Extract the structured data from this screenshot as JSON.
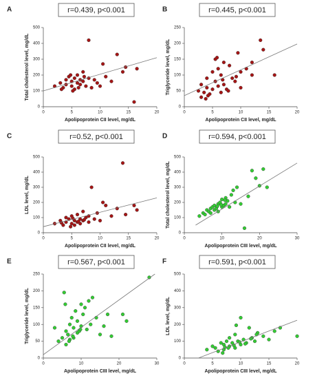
{
  "chart_data": [
    {
      "type": "scatter",
      "panel": "A",
      "annotation": "r=0.439, p<0.001",
      "x_label": "Apolipoprotein CII level, mg/dL",
      "y_label": "Total cholesterol level, mg/dL",
      "xlim": [
        0,
        20
      ],
      "xticks": [
        0,
        5,
        10,
        15,
        20
      ],
      "ylim": [
        0,
        500
      ],
      "yticks": [
        0,
        100,
        200,
        300,
        400,
        500
      ],
      "color": "#a51515",
      "x": [
        2,
        3,
        3.5,
        4,
        4,
        4.5,
        5,
        5,
        5.5,
        5.5,
        6,
        6,
        6.5,
        6.5,
        7,
        7,
        7.5,
        8,
        8,
        8.5,
        9,
        9.5,
        10,
        10.5,
        11,
        12,
        13,
        14,
        14.5,
        16,
        16.5,
        4.8,
        5.2,
        6.2,
        7.2,
        3.2
      ],
      "values": [
        130,
        150,
        120,
        170,
        140,
        190,
        160,
        130,
        180,
        110,
        150,
        200,
        170,
        140,
        160,
        220,
        130,
        420,
        180,
        120,
        170,
        150,
        130,
        270,
        190,
        160,
        330,
        220,
        250,
        30,
        240,
        200,
        100,
        120,
        190,
        110
      ],
      "fit_line": {
        "x": [
          0,
          20
        ],
        "y": [
          100,
          310
        ]
      }
    },
    {
      "type": "scatter",
      "panel": "B",
      "annotation": "r=0.445, p<0.001",
      "x_label": "Apolipoprotein CII level, mg/dL",
      "y_label": "Triglyceride level, mg/dL",
      "xlim": [
        0,
        20
      ],
      "xticks": [
        0,
        5,
        10,
        15,
        20
      ],
      "ylim": [
        0,
        250
      ],
      "yticks": [
        0,
        50,
        100,
        150,
        200,
        250
      ],
      "color": "#a51515",
      "x": [
        2.5,
        3,
        3,
        3.5,
        4,
        4,
        4.5,
        5,
        5,
        5.5,
        5.5,
        6,
        6,
        6.5,
        6.5,
        7,
        7,
        7.5,
        8,
        8.5,
        9,
        9.5,
        10,
        10,
        11,
        12,
        12,
        13.5,
        14,
        16,
        4.2,
        5.8,
        6.8,
        3.8,
        7.8,
        9.2
      ],
      "values": [
        50,
        30,
        70,
        45,
        90,
        60,
        40,
        110,
        55,
        80,
        150,
        120,
        65,
        100,
        45,
        140,
        70,
        55,
        130,
        90,
        80,
        170,
        110,
        60,
        120,
        100,
        140,
        210,
        180,
        100,
        35,
        155,
        85,
        25,
        50,
        95
      ],
      "fit_line": {
        "x": [
          0,
          20
        ],
        "y": [
          35,
          198
        ]
      }
    },
    {
      "type": "scatter",
      "panel": "C",
      "annotation": "r=0.52, p<0.001",
      "x_label": "Apolipoprotein CII level, mg/dL",
      "y_label": "LDL level, mg/dL",
      "xlim": [
        0,
        20
      ],
      "xticks": [
        0,
        5,
        10,
        15,
        20
      ],
      "ylim": [
        0,
        500
      ],
      "yticks": [
        0,
        100,
        200,
        300,
        400,
        500
      ],
      "color": "#a51515",
      "x": [
        2,
        3,
        3.5,
        4,
        4,
        4.5,
        5,
        5,
        5.5,
        5.5,
        6,
        6,
        6.5,
        6.5,
        7,
        7,
        7.5,
        8,
        8,
        8.5,
        9,
        9.5,
        10,
        10.5,
        11,
        12,
        13,
        14,
        14.5,
        16,
        16.5,
        4.8,
        5.2,
        6.2,
        7.2,
        3.2
      ],
      "values": [
        60,
        80,
        50,
        100,
        70,
        90,
        110,
        60,
        80,
        50,
        120,
        70,
        90,
        60,
        140,
        80,
        100,
        110,
        70,
        300,
        90,
        130,
        80,
        200,
        180,
        110,
        160,
        460,
        120,
        180,
        150,
        40,
        95,
        75,
        85,
        65
      ],
      "fit_line": {
        "x": [
          0,
          20
        ],
        "y": [
          40,
          230
        ]
      }
    },
    {
      "type": "scatter",
      "panel": "D",
      "annotation": "r=0.594, p<0.001",
      "x_label": "Apolipoprotein CIII level, mg/dL",
      "y_label": "Total cholesterol level, mg/dL",
      "xlim": [
        0,
        30
      ],
      "xticks": [
        0,
        10,
        20,
        30
      ],
      "ylim": [
        0,
        500
      ],
      "yticks": [
        0,
        100,
        200,
        300,
        400,
        500
      ],
      "color": "#33cc33",
      "x": [
        4,
        5,
        5.5,
        6,
        6.5,
        7,
        7,
        7.5,
        8,
        8,
        8.5,
        9,
        9,
        9.5,
        10,
        10,
        10.5,
        11,
        11,
        11.5,
        12,
        12.5,
        13,
        13.5,
        14,
        15,
        16,
        17,
        18,
        19,
        20,
        21,
        22,
        8.8,
        9.8,
        10.8
      ],
      "values": [
        110,
        130,
        120,
        150,
        140,
        160,
        130,
        170,
        150,
        180,
        160,
        190,
        140,
        200,
        170,
        220,
        180,
        190,
        230,
        210,
        170,
        250,
        280,
        200,
        300,
        190,
        30,
        240,
        410,
        360,
        310,
        420,
        300,
        175,
        185,
        215
      ],
      "fit_line": {
        "x": [
          3,
          30
        ],
        "y": [
          50,
          460
        ]
      }
    },
    {
      "type": "scatter",
      "panel": "E",
      "annotation": "r=0.567, p<0.001",
      "x_label": "Apolipoprotein CIII level, mg/dL",
      "y_label": "Triglyceride level, mg/dL",
      "xlim": [
        0,
        30
      ],
      "xticks": [
        0,
        10,
        20,
        30
      ],
      "ylim": [
        0,
        250
      ],
      "yticks": [
        0,
        50,
        100,
        150,
        200,
        250
      ],
      "color": "#33cc33",
      "x": [
        3,
        4,
        5,
        5.5,
        6,
        6,
        6.5,
        7,
        7,
        7.5,
        8,
        8,
        8.5,
        9,
        9,
        9.5,
        10,
        10,
        10.5,
        11,
        11.5,
        12,
        12.5,
        13,
        14,
        15,
        16,
        17,
        18,
        21,
        22,
        28,
        6.8,
        7.8,
        9.8,
        5.8
      ],
      "values": [
        90,
        50,
        60,
        195,
        40,
        80,
        70,
        100,
        55,
        120,
        60,
        90,
        140,
        75,
        110,
        80,
        160,
        95,
        130,
        150,
        85,
        170,
        100,
        180,
        120,
        70,
        95,
        130,
        65,
        130,
        110,
        240,
        50,
        65,
        85,
        160
      ],
      "fit_line": {
        "x": [
          0,
          29.5
        ],
        "y": [
          10,
          250
        ]
      }
    },
    {
      "type": "scatter",
      "panel": "F",
      "annotation": "r=0.591, p<0.001",
      "x_label": "Apolipoprotein CIII level, mg/dL",
      "y_label": "LDL level, mg/dL",
      "xlim": [
        0,
        20
      ],
      "xticks": [
        0,
        5,
        10,
        15,
        20
      ],
      "ylim": [
        0,
        500
      ],
      "yticks": [
        0,
        100,
        200,
        300,
        400,
        500
      ],
      "color": "#33cc33",
      "x": [
        4,
        5,
        5.5,
        6,
        6.5,
        7,
        7,
        7.5,
        8,
        8,
        8.5,
        9,
        9,
        9.5,
        10,
        10,
        10.5,
        11,
        11.5,
        12,
        12.5,
        13,
        14,
        15,
        16,
        17,
        20,
        6.8,
        7.8,
        8.8,
        9.8,
        10.8,
        11.8,
        7.2,
        9.2,
        12.8
      ],
      "values": [
        50,
        70,
        60,
        40,
        90,
        80,
        50,
        100,
        70,
        120,
        90,
        60,
        140,
        100,
        80,
        240,
        110,
        90,
        180,
        120,
        100,
        150,
        130,
        110,
        160,
        180,
        130,
        30,
        60,
        75,
        95,
        85,
        115,
        65,
        195,
        140
      ],
      "fit_line": {
        "x": [
          2.5,
          20
        ],
        "y": [
          0,
          225
        ]
      }
    }
  ]
}
